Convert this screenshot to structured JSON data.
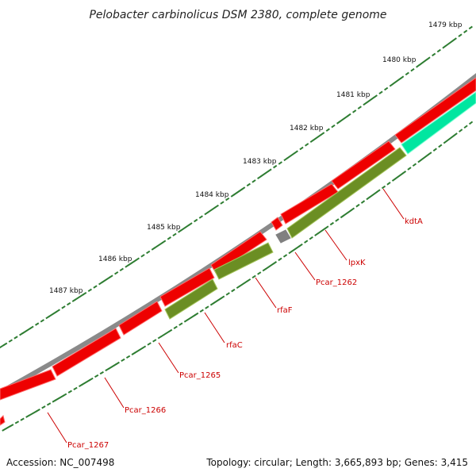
{
  "title": "Pelobacter carbinolicus DSM 2380, complete genome",
  "accession": "Accession: NC_007498",
  "topology": "Topology: circular; Length: 3,665,893 bp; Genes: 3,415",
  "colors": {
    "backbone": "#8a8a8a",
    "cds_red": "#ee0000",
    "cds_red_light": "#ff6a6a",
    "olive": "#6b8e23",
    "olive_light": "#a4c45a",
    "aqua": "#00e6a0",
    "aqua_light": "#7fffd4",
    "gray_feature": "#808080",
    "tick": "#2e7d32",
    "label": "#cc0000"
  },
  "kbp_labels": [
    "1479 kbp",
    "1480 kbp",
    "1481 kbp",
    "1482 kbp",
    "1483 kbp",
    "1484 kbp",
    "1485 kbp",
    "1486 kbp",
    "1487 kbp"
  ],
  "genes": [
    "kdtA",
    "lpxK",
    "Pcar_1262",
    "rfaF",
    "rfaC",
    "Pcar_1265",
    "Pcar_1266",
    "Pcar_1267"
  ]
}
